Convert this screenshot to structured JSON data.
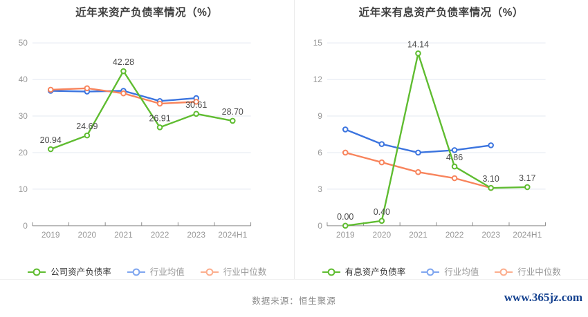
{
  "footer": {
    "source_text": "数据来源：恒生聚源",
    "watermark": "www.365jz.com",
    "watermark_color": "#14418f",
    "source_color": "#8c8c8c"
  },
  "style": {
    "grid_color": "#e3e8f0",
    "axis_color": "#8a8a8a",
    "tick_label_color": "#999999",
    "data_label_color": "#4c4c4c",
    "title_color": "#3f3f3f",
    "background": "#ffffff"
  },
  "chart_data": [
    {
      "type": "line",
      "title": "近年来资产负债率情况（%）",
      "categories": [
        "2019",
        "2020",
        "2021",
        "2022",
        "2023",
        "2024H1"
      ],
      "ylim": [
        0,
        50
      ],
      "yticks": [
        0,
        10,
        20,
        30,
        40,
        50
      ],
      "grid": true,
      "legend_position": "bottom",
      "draw_order": [
        1,
        2,
        0
      ],
      "series": [
        {
          "name": "公司资产负债率",
          "color": "#5fbc30",
          "legend_color": "#5fbc30",
          "label_color": "#333333",
          "values": [
            20.94,
            24.69,
            42.28,
            26.91,
            30.61,
            28.7
          ],
          "labels": [
            "20.94",
            "24.69",
            "42.28",
            "26.91",
            "30.61",
            "28.70"
          ],
          "show_labels": true
        },
        {
          "name": "行业均值",
          "color": "#3b74df",
          "legend_color": "#7fa6ef",
          "label_color": "#999999",
          "values": [
            36.9,
            36.7,
            36.9,
            34.1,
            34.9
          ],
          "show_labels": false
        },
        {
          "name": "行业中位数",
          "color": "#f8845c",
          "legend_color": "#fcae8e",
          "label_color": "#999999",
          "values": [
            37.2,
            37.6,
            36.2,
            33.4,
            33.9
          ],
          "show_labels": false
        }
      ]
    },
    {
      "type": "line",
      "title": "近年来有息资产负债率情况（%）",
      "categories": [
        "2019",
        "2020",
        "2021",
        "2022",
        "2023",
        "2024H1"
      ],
      "ylim": [
        0,
        15
      ],
      "yticks": [
        0,
        3,
        6,
        9,
        12,
        15
      ],
      "grid": true,
      "legend_position": "bottom",
      "draw_order": [
        1,
        2,
        0
      ],
      "series": [
        {
          "name": "有息资产负债率",
          "color": "#5fbc30",
          "legend_color": "#5fbc30",
          "label_color": "#333333",
          "values": [
            0.0,
            0.4,
            14.14,
            4.86,
            3.1,
            3.17
          ],
          "labels": [
            "0.00",
            "0.40",
            "14.14",
            "4.86",
            "3.10",
            "3.17"
          ],
          "show_labels": true
        },
        {
          "name": "行业均值",
          "color": "#3b74df",
          "legend_color": "#7fa6ef",
          "label_color": "#999999",
          "values": [
            7.9,
            6.7,
            6.0,
            6.2,
            6.6
          ],
          "show_labels": false
        },
        {
          "name": "行业中位数",
          "color": "#f8845c",
          "legend_color": "#fcae8e",
          "label_color": "#999999",
          "values": [
            6.0,
            5.2,
            4.4,
            3.9,
            3.1
          ],
          "show_labels": false
        }
      ]
    }
  ]
}
